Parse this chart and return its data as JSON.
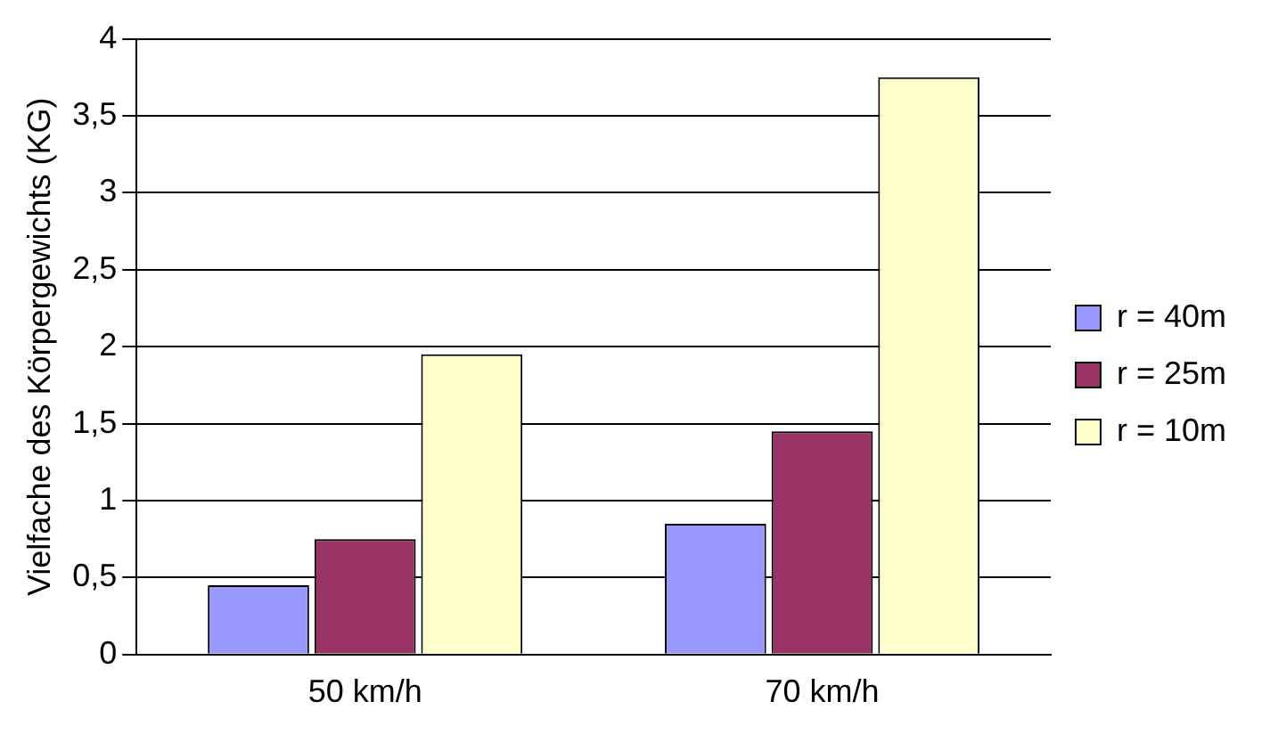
{
  "chart_data": {
    "type": "bar",
    "ylabel": "Vielfache des Körpergewichts (KG)",
    "categories": [
      "50 km/h",
      "70 km/h"
    ],
    "series": [
      {
        "name": "r = 40m",
        "color": "#9999ff",
        "values": [
          0.45,
          0.85
        ]
      },
      {
        "name": "r = 25m",
        "color": "#993366",
        "values": [
          0.75,
          1.45
        ]
      },
      {
        "name": "r = 10m",
        "color": "#ffffcc",
        "values": [
          1.95,
          3.75
        ]
      }
    ],
    "ylim": [
      0,
      4
    ],
    "yticks": [
      0,
      {
        "value": 0.5,
        "label": "0,5"
      },
      1,
      {
        "value": 1.5,
        "label": "1,5"
      },
      2,
      {
        "value": 2.5,
        "label": "2,5"
      },
      3,
      {
        "value": 3.5,
        "label": "3,5"
      },
      4
    ],
    "grid": "y",
    "legend": "right"
  }
}
